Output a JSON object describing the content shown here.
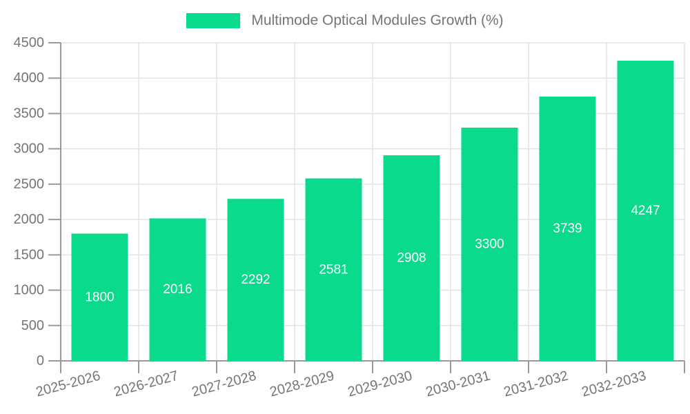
{
  "chart_data": {
    "type": "bar",
    "title": "",
    "legend_label": "Multimode Optical Modules Growth (%)",
    "legend_position": "top",
    "categories": [
      "2025-2026",
      "2026-2027",
      "2027-2028",
      "2028-2029",
      "2029-2030",
      "2030-2031",
      "2031-2032",
      "2032-2033"
    ],
    "series": [
      {
        "name": "Multimode Optical Modules Growth (%)",
        "values": [
          1800,
          2016,
          2292,
          2581,
          2908,
          3300,
          3739,
          4247
        ]
      }
    ],
    "xlabel": "",
    "ylabel": "",
    "ylim": [
      0,
      4500
    ],
    "ytick_step": 500,
    "yticks": [
      0,
      500,
      1000,
      1500,
      2000,
      2500,
      3000,
      3500,
      4000,
      4500
    ],
    "grid": true,
    "bar_value_labels_visible": true,
    "x_label_rotation_deg": -15,
    "colors": {
      "bar": "#0ADA8C",
      "bar_label": "#FFFFFF",
      "axis_text": "#757575",
      "grid_line": "#E3E3E3",
      "axis_line": "#999999",
      "background": "#FFFFFF"
    }
  }
}
